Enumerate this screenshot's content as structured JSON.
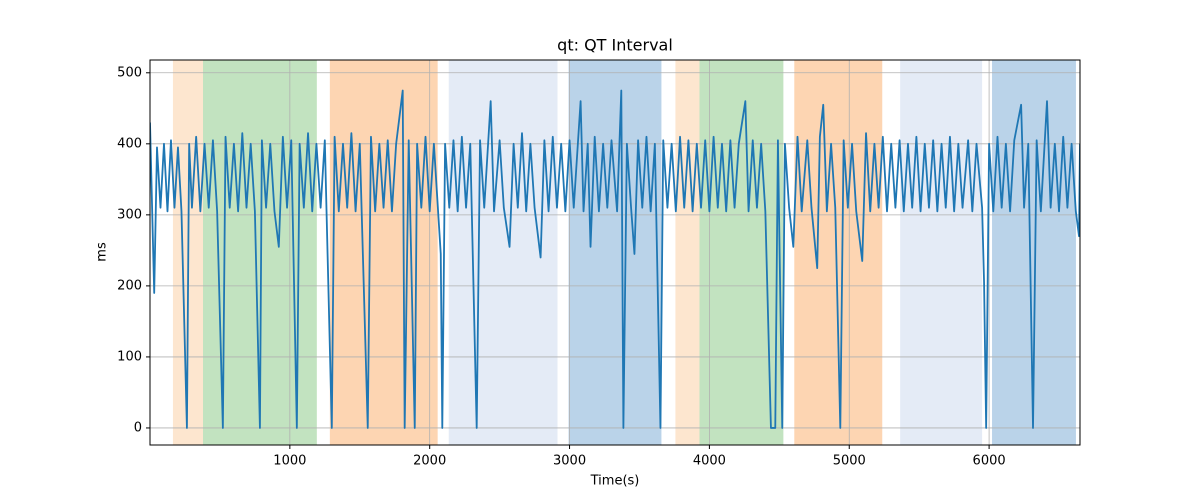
{
  "chart_data": {
    "type": "line",
    "title": "qt: QT Interval",
    "x_label": "Time(s)",
    "y_label": "ms",
    "xlim": [
      0,
      6650
    ],
    "ylim": [
      -24,
      518
    ],
    "xticks": [
      1000,
      2000,
      3000,
      4000,
      5000,
      6000
    ],
    "yticks": [
      0,
      100,
      200,
      300,
      400,
      500
    ],
    "grid": true,
    "regions": [
      {
        "start": 164,
        "end": 379,
        "color": "#fde6cf"
      },
      {
        "start": 379,
        "end": 1193,
        "color": "#c2e3c0"
      },
      {
        "start": 1286,
        "end": 2057,
        "color": "#fdd5b2"
      },
      {
        "start": 2136,
        "end": 2914,
        "color": "#e4ebf6"
      },
      {
        "start": 2993,
        "end": 3657,
        "color": "#bad3e9"
      },
      {
        "start": 3757,
        "end": 3929,
        "color": "#fde6cf"
      },
      {
        "start": 3929,
        "end": 4529,
        "color": "#c2e3c0"
      },
      {
        "start": 4607,
        "end": 5236,
        "color": "#fdd5b2"
      },
      {
        "start": 5364,
        "end": 5950,
        "color": "#e4ebf6"
      },
      {
        "start": 6021,
        "end": 6621,
        "color": "#bad3e9"
      }
    ],
    "x": [
      0,
      30,
      50,
      75,
      100,
      125,
      150,
      175,
      200,
      225,
      264,
      280,
      300,
      330,
      360,
      390,
      420,
      450,
      480,
      521,
      540,
      570,
      600,
      630,
      660,
      690,
      720,
      750,
      786,
      800,
      830,
      860,
      890,
      921,
      950,
      980,
      1010,
      1050,
      1070,
      1100,
      1130,
      1160,
      1190,
      1220,
      1250,
      1300,
      1320,
      1350,
      1380,
      1410,
      1440,
      1470,
      1500,
      1557,
      1580,
      1610,
      1640,
      1670,
      1700,
      1730,
      1760,
      1807,
      1821,
      1850,
      1893,
      1910,
      1940,
      1970,
      2000,
      2030,
      2079,
      2090,
      2110,
      2140,
      2170,
      2200,
      2230,
      2260,
      2290,
      2336,
      2360,
      2390,
      2436,
      2460,
      2500,
      2530,
      2571,
      2600,
      2630,
      2660,
      2690,
      2720,
      2750,
      2793,
      2820,
      2850,
      2880,
      2910,
      2940,
      2970,
      3000,
      3030,
      3079,
      3100,
      3130,
      3150,
      3180,
      3210,
      3240,
      3270,
      3300,
      3340,
      3370,
      3385,
      3410,
      3440,
      3464,
      3490,
      3520,
      3550,
      3580,
      3610,
      3650,
      3670,
      3700,
      3730,
      3760,
      3790,
      3820,
      3850,
      3880,
      3910,
      3940,
      3970,
      4000,
      4030,
      4060,
      4090,
      4120,
      4150,
      4180,
      4210,
      4257,
      4280,
      4310,
      4340,
      4370,
      4400,
      4440,
      4471,
      4490,
      4521,
      4540,
      4570,
      4600,
      4630,
      4660,
      4700,
      4730,
      4771,
      4790,
      4814,
      4840,
      4870,
      4900,
      4936,
      4960,
      4990,
      5020,
      5050,
      5093,
      5120,
      5150,
      5180,
      5210,
      5240,
      5270,
      5300,
      5330,
      5360,
      5390,
      5420,
      5450,
      5480,
      5510,
      5540,
      5570,
      5600,
      5630,
      5660,
      5690,
      5720,
      5750,
      5780,
      5810,
      5850,
      5880,
      5910,
      5950,
      5964,
      5979,
      6000,
      6030,
      6060,
      6090,
      6120,
      6150,
      6180,
      6229,
      6250,
      6280,
      6314,
      6340,
      6370,
      6414,
      6440,
      6470,
      6500,
      6530,
      6560,
      6590,
      6620,
      6643,
      6650
    ],
    "series": [
      {
        "color": "#1f77b4",
        "values": [
          430,
          190,
          395,
          310,
          400,
          305,
          405,
          310,
          395,
          305,
          0,
          400,
          310,
          410,
          305,
          400,
          310,
          405,
          305,
          0,
          410,
          310,
          400,
          305,
          415,
          310,
          400,
          305,
          0,
          405,
          310,
          400,
          305,
          255,
          410,
          310,
          405,
          0,
          400,
          310,
          415,
          305,
          400,
          310,
          405,
          0,
          410,
          305,
          400,
          310,
          415,
          305,
          400,
          0,
          410,
          305,
          400,
          310,
          405,
          305,
          400,
          475,
          0,
          405,
          0,
          400,
          310,
          410,
          305,
          400,
          245,
          0,
          400,
          310,
          405,
          305,
          410,
          310,
          400,
          0,
          405,
          310,
          460,
          305,
          405,
          310,
          255,
          400,
          310,
          415,
          305,
          400,
          310,
          240,
          405,
          305,
          410,
          310,
          400,
          305,
          405,
          310,
          460,
          305,
          400,
          255,
          410,
          305,
          400,
          310,
          405,
          305,
          475,
          0,
          400,
          310,
          245,
          405,
          310,
          410,
          305,
          400,
          0,
          405,
          310,
          400,
          305,
          410,
          310,
          405,
          305,
          400,
          310,
          405,
          305,
          410,
          310,
          400,
          305,
          405,
          310,
          400,
          460,
          305,
          405,
          310,
          400,
          305,
          0,
          0,
          405,
          0,
          400,
          310,
          255,
          410,
          305,
          405,
          310,
          225,
          410,
          455,
          305,
          400,
          310,
          0,
          405,
          310,
          400,
          305,
          235,
          415,
          305,
          400,
          310,
          410,
          305,
          400,
          310,
          405,
          305,
          400,
          310,
          410,
          305,
          400,
          310,
          405,
          305,
          400,
          310,
          410,
          305,
          400,
          310,
          405,
          305,
          400,
          310,
          205,
          0,
          400,
          305,
          410,
          310,
          400,
          305,
          405,
          455,
          310,
          400,
          0,
          405,
          305,
          460,
          310,
          400,
          305,
          410,
          310,
          400,
          305,
          270,
          400
        ]
      }
    ]
  }
}
